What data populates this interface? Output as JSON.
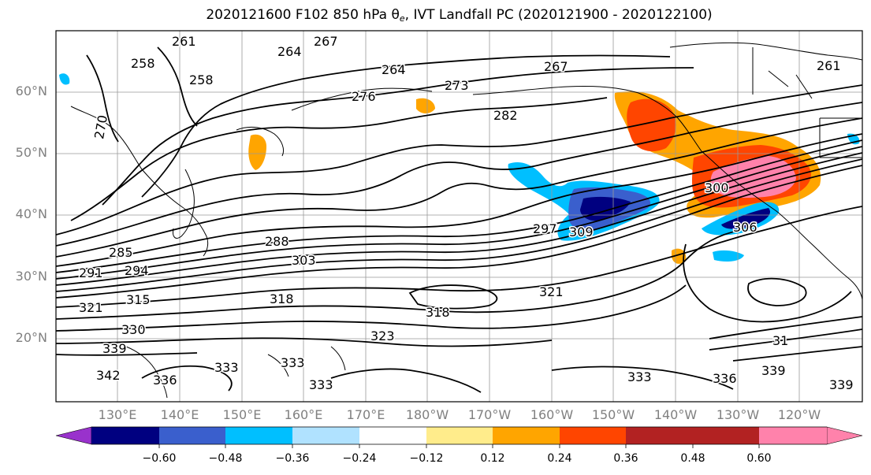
{
  "title": {
    "prefix": "2020121600 F102 850 hPa ",
    "theta": "θ",
    "theta_sub": "e",
    "suffix": ", IVT Landfall PC (2020121900 - 2020122100)"
  },
  "lat_labels": [
    "60°N",
    "50°N",
    "40°N",
    "30°N",
    "20°N"
  ],
  "lon_labels": [
    "130°E",
    "140°E",
    "150°E",
    "160°E",
    "170°E",
    "180°W",
    "170°W",
    "160°W",
    "150°W",
    "140°W",
    "130°W",
    "120°W"
  ],
  "colorbar": {
    "ticks": [
      "−0.60",
      "−0.48",
      "−0.36",
      "−0.24",
      "−0.12",
      "0.12",
      "0.24",
      "0.36",
      "0.48",
      "0.60"
    ],
    "colors": [
      "#9932cc",
      "#000080",
      "#3a5fcd",
      "#00bfff",
      "#b0e2ff",
      "#ffffff",
      "#ffec8b",
      "#ffa500",
      "#ff4500",
      "#b22222",
      "#ff82ab"
    ]
  },
  "contour_labels": [
    "261",
    "258",
    "258",
    "264",
    "267",
    "264",
    "267",
    "261",
    "273",
    "276",
    "282",
    "270",
    "288",
    "303",
    "318",
    "285",
    "294",
    "291",
    "315",
    "321",
    "330",
    "339",
    "342",
    "336",
    "333",
    "333",
    "333",
    "318",
    "321",
    "323",
    "297",
    "309",
    "300",
    "306",
    "336",
    "339",
    "339",
    "333",
    "31"
  ]
}
